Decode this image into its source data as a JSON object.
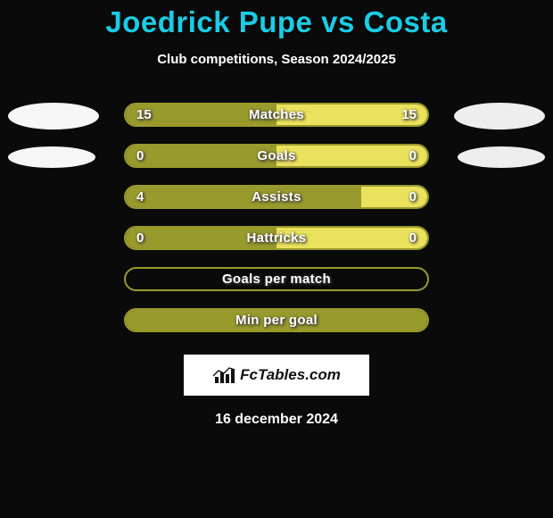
{
  "title": {
    "player1": "Joedrick Pupe",
    "vs": "vs",
    "player2": "Costa",
    "fontsize": 33,
    "color": "#1acce6"
  },
  "subtitle": {
    "text": "Club competitions, Season 2024/2025",
    "fontsize": 15,
    "color": "#ffffff"
  },
  "colors": {
    "background": "#0a0a0a",
    "player1": "#999a2c",
    "player2": "#eae25d",
    "ellipse1": "#f6f6f6",
    "ellipse2": "#eeeeee",
    "bar_border_radius": 14
  },
  "bars": [
    {
      "label": "Matches",
      "left_val": "15",
      "right_val": "15",
      "left_pct": 50,
      "right_pct": 50,
      "show_ellipse": true,
      "ellipse_small": false
    },
    {
      "label": "Goals",
      "left_val": "0",
      "right_val": "0",
      "left_pct": 50,
      "right_pct": 50,
      "show_ellipse": true,
      "ellipse_small": true
    },
    {
      "label": "Assists",
      "left_val": "4",
      "right_val": "0",
      "left_pct": 78,
      "right_pct": 22,
      "show_ellipse": false,
      "ellipse_small": false
    },
    {
      "label": "Hattricks",
      "left_val": "0",
      "right_val": "0",
      "left_pct": 50,
      "right_pct": 50,
      "show_ellipse": false,
      "ellipse_small": false
    },
    {
      "label": "Goals per match",
      "left_val": "",
      "right_val": "",
      "left_pct": 0,
      "right_pct": 0,
      "show_ellipse": false,
      "ellipse_small": false
    },
    {
      "label": "Min per goal",
      "left_val": "",
      "right_val": "",
      "left_pct": 100,
      "right_pct": 0,
      "show_ellipse": false,
      "ellipse_small": false
    }
  ],
  "brand": {
    "text": "FcTables.com",
    "background": "#ffffff",
    "icon_color": "#111111"
  },
  "date": {
    "text": "16 december 2024",
    "fontsize": 16,
    "color": "#ffffff"
  }
}
